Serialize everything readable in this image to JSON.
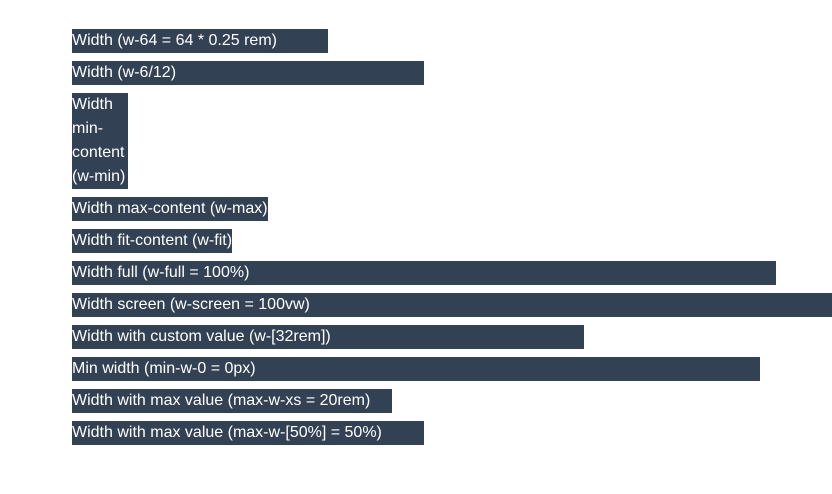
{
  "bars": [
    {
      "label": "Width (w-64 = 64 * 0.25 rem)"
    },
    {
      "label": "Width (w-6/12)"
    },
    {
      "label": "Width min-content (w-min)"
    },
    {
      "label": "Width max-content (w-max)"
    },
    {
      "label": "Width fit-content (w-fit)"
    },
    {
      "label": "Width full (w-full = 100%)"
    },
    {
      "label": "Width screen (w-screen = 100vw)"
    },
    {
      "label": "Width with custom value (w-[32rem])"
    },
    {
      "label": "Min width (min-w-0 = 0px)"
    },
    {
      "label": "Width with max value (max-w-xs = 20rem)"
    },
    {
      "label": "Width with max value (max-w-[50%] = 50%)"
    }
  ],
  "colors": {
    "bar_background": "#334155",
    "bar_text": "#ffffff",
    "page_background": "#ffffff"
  }
}
